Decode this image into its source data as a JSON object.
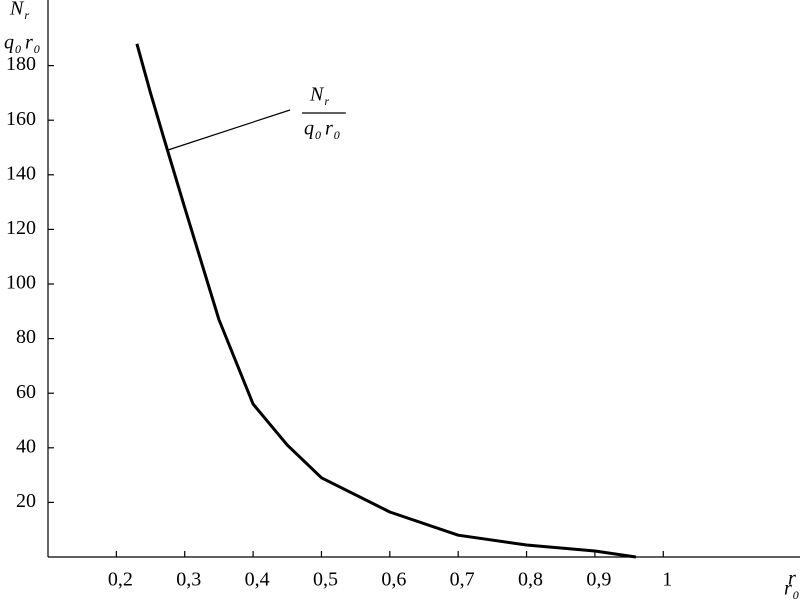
{
  "chart_data": {
    "type": "line",
    "y_label": {
      "numerator": {
        "base": "N",
        "sub": "r"
      },
      "denominator": [
        {
          "base": "q",
          "sub": "0"
        },
        {
          "base": "r",
          "sub": "0"
        }
      ]
    },
    "x_label": {
      "numerator": {
        "base": "r"
      },
      "denominator": {
        "base": "r",
        "sub": "0"
      }
    },
    "annotation": {
      "numerator": {
        "base": "N",
        "sub": "r"
      },
      "denominator": [
        {
          "base": "q",
          "sub": "0"
        },
        {
          "base": "r",
          "sub": "0"
        }
      ]
    },
    "x": [
      0.23,
      0.25,
      0.27,
      0.3,
      0.35,
      0.4,
      0.45,
      0.5,
      0.6,
      0.7,
      0.8,
      0.9,
      0.96
    ],
    "series": [
      {
        "color": "#000000",
        "values": [
          188,
          170,
          153,
          128,
          87,
          56,
          41,
          29,
          16.5,
          8,
          4.4,
          2.2,
          0
        ]
      }
    ],
    "xlim": [
      0.1,
      1.2
    ],
    "ylim": [
      0,
      200
    ],
    "xticks": [
      {
        "value": 0.2,
        "label": "0,2"
      },
      {
        "value": 0.3,
        "label": "0,3"
      },
      {
        "value": 0.4,
        "label": "0,4"
      },
      {
        "value": 0.5,
        "label": "0,5"
      },
      {
        "value": 0.6,
        "label": "0,6"
      },
      {
        "value": 0.7,
        "label": "0,7"
      },
      {
        "value": 0.8,
        "label": "0,8"
      },
      {
        "value": 0.9,
        "label": "0,9"
      },
      1
    ],
    "yticks": [
      20,
      40,
      60,
      80,
      100,
      120,
      140,
      160,
      180
    ],
    "grid": false
  }
}
